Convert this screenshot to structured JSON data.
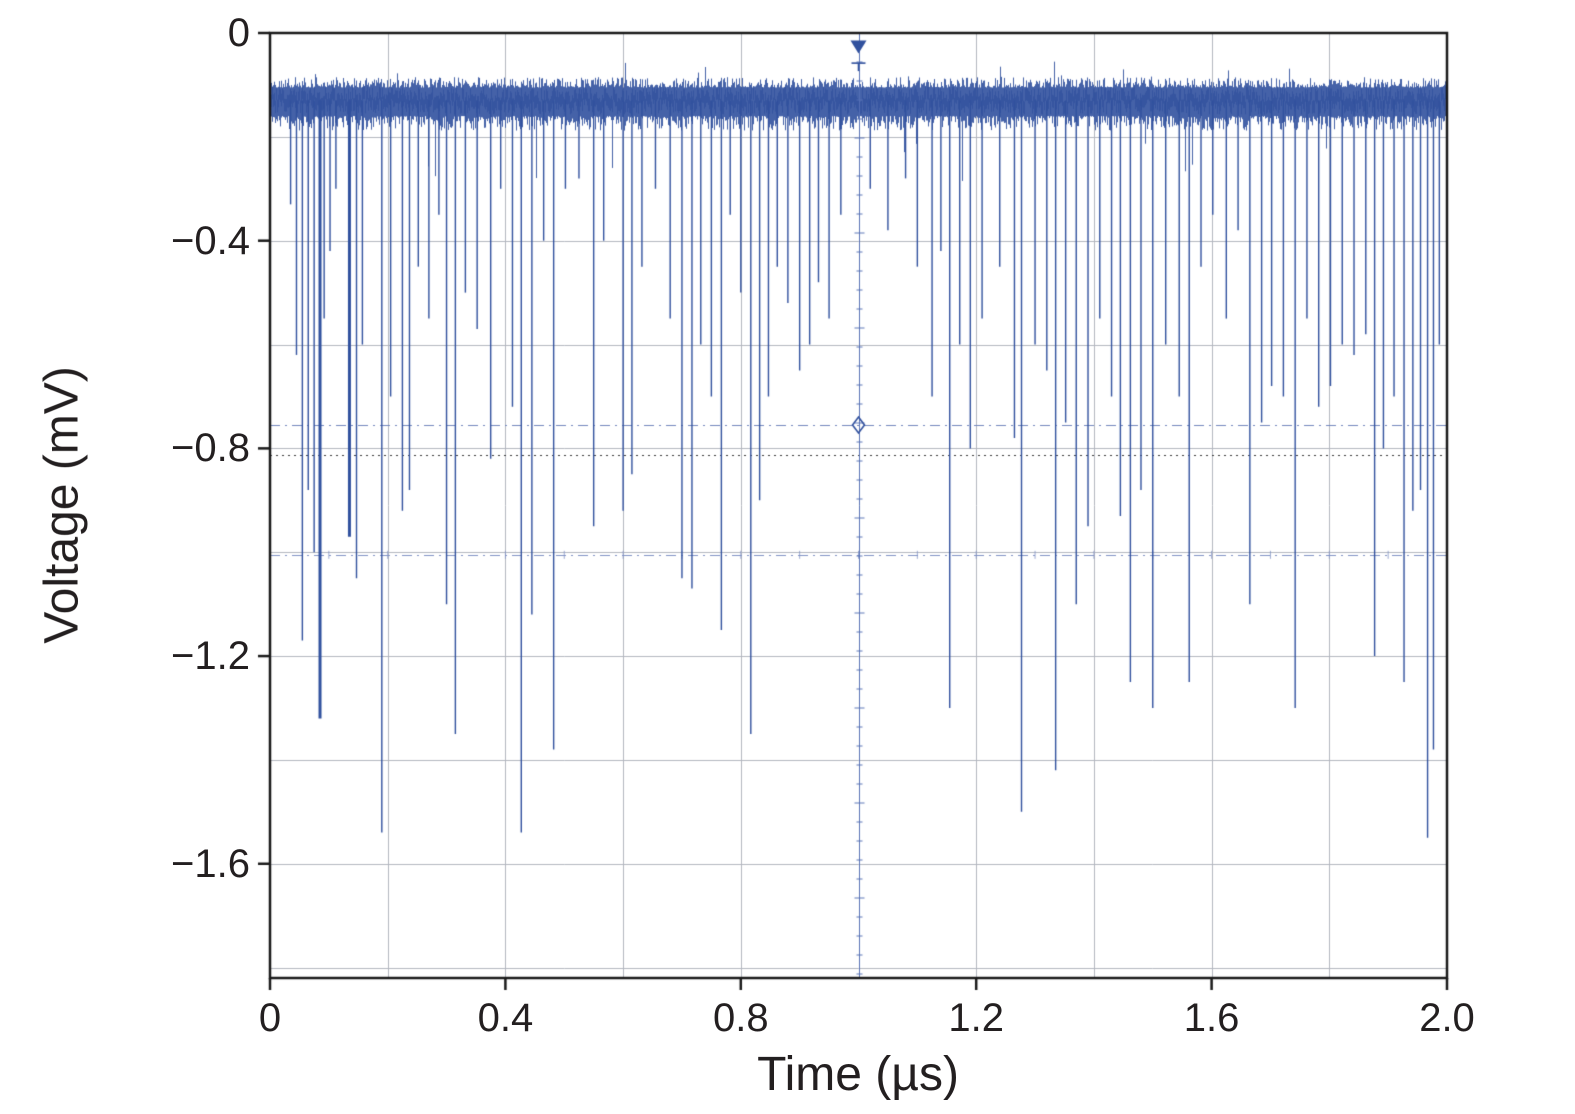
{
  "chart_data": {
    "type": "line",
    "title": "",
    "xlabel": "Time (µs)",
    "ylabel": "Voltage (mV)",
    "xlim": [
      0,
      2.0
    ],
    "ylim": [
      -1.82,
      0
    ],
    "grid": {
      "on": true,
      "x_step": 0.2,
      "y_step": 0.2,
      "color": "#b3b7c0"
    },
    "xticks": {
      "values": [
        0,
        0.4,
        0.8,
        1.2,
        1.6,
        2.0
      ],
      "labels": [
        "0",
        "0.4",
        "0.8",
        "1.2",
        "1.6",
        "2.0"
      ]
    },
    "yticks": {
      "values": [
        0,
        -0.4,
        -0.8,
        -1.2,
        -1.6
      ],
      "labels": [
        "0",
        "−0.4",
        "−0.8",
        "−1.2",
        "−1.6"
      ]
    },
    "colors": {
      "trace": "#31519e",
      "trace_light": "#5570b5",
      "axis": "#1a1a1a",
      "text": "#231f20"
    },
    "baseline": {
      "level": -0.13,
      "noise_top": -0.105,
      "noise_bottom": -0.16
    },
    "ref_lines": [
      {
        "v": -0.755,
        "style": "dashdot",
        "color": "#7388be",
        "note": "cursor level with diamond marker"
      },
      {
        "v": -0.813,
        "style": "dotted",
        "color": "#3a3a3a",
        "note": "dotted reference level"
      },
      {
        "v": -1.005,
        "style": "dashdot",
        "color": "#8294c6",
        "note": "lower dash-dot reference level"
      }
    ],
    "trigger": {
      "t": 1.0,
      "triangle_v": -0.028,
      "tee_v": -0.058,
      "diamond_v": -0.755
    },
    "spikes": [
      [
        0.035,
        -0.33
      ],
      [
        0.045,
        -0.62
      ],
      [
        0.055,
        -1.17
      ],
      [
        0.065,
        -0.88
      ],
      [
        0.075,
        -1.0
      ],
      [
        0.085,
        -1.32,
        3
      ],
      [
        0.092,
        -0.55
      ],
      [
        0.102,
        -0.42
      ],
      [
        0.112,
        -0.3
      ],
      [
        0.135,
        -0.97,
        3
      ],
      [
        0.147,
        -1.05
      ],
      [
        0.157,
        -0.6
      ],
      [
        0.19,
        -1.54
      ],
      [
        0.205,
        -0.7
      ],
      [
        0.225,
        -0.92
      ],
      [
        0.237,
        -0.88
      ],
      [
        0.252,
        -0.45
      ],
      [
        0.27,
        -0.55
      ],
      [
        0.287,
        -0.35
      ],
      [
        0.3,
        -1.1
      ],
      [
        0.315,
        -1.35
      ],
      [
        0.332,
        -0.5
      ],
      [
        0.352,
        -0.57
      ],
      [
        0.375,
        -0.82
      ],
      [
        0.392,
        -0.3
      ],
      [
        0.412,
        -0.72
      ],
      [
        0.427,
        -1.54
      ],
      [
        0.445,
        -1.12
      ],
      [
        0.465,
        -0.4
      ],
      [
        0.482,
        -1.38
      ],
      [
        0.502,
        -0.3
      ],
      [
        0.525,
        -0.28
      ],
      [
        0.55,
        -0.95
      ],
      [
        0.567,
        -0.4
      ],
      [
        0.6,
        -0.92
      ],
      [
        0.615,
        -0.85
      ],
      [
        0.632,
        -0.45
      ],
      [
        0.655,
        -0.3
      ],
      [
        0.68,
        -0.55
      ],
      [
        0.7,
        -1.05
      ],
      [
        0.717,
        -1.07
      ],
      [
        0.732,
        -0.6
      ],
      [
        0.75,
        -0.7
      ],
      [
        0.767,
        -1.15
      ],
      [
        0.782,
        -0.35
      ],
      [
        0.8,
        -0.5
      ],
      [
        0.817,
        -1.35
      ],
      [
        0.832,
        -0.9
      ],
      [
        0.847,
        -0.7
      ],
      [
        0.862,
        -0.45
      ],
      [
        0.88,
        -0.52
      ],
      [
        0.9,
        -0.65
      ],
      [
        0.917,
        -0.6
      ],
      [
        0.932,
        -0.48
      ],
      [
        0.95,
        -0.55
      ],
      [
        0.97,
        -0.35
      ],
      [
        1.02,
        -0.3
      ],
      [
        1.05,
        -0.38
      ],
      [
        1.08,
        -0.28
      ],
      [
        1.1,
        -0.45
      ],
      [
        1.125,
        -0.7
      ],
      [
        1.14,
        -0.42
      ],
      [
        1.155,
        -1.3
      ],
      [
        1.172,
        -0.6
      ],
      [
        1.19,
        -0.8
      ],
      [
        1.21,
        -0.55
      ],
      [
        1.24,
        -0.45
      ],
      [
        1.265,
        -0.78
      ],
      [
        1.277,
        -1.5
      ],
      [
        1.3,
        -0.6
      ],
      [
        1.32,
        -0.65
      ],
      [
        1.335,
        -1.42
      ],
      [
        1.352,
        -0.75
      ],
      [
        1.37,
        -1.1
      ],
      [
        1.39,
        -0.95
      ],
      [
        1.41,
        -0.55
      ],
      [
        1.43,
        -0.7
      ],
      [
        1.445,
        -0.93
      ],
      [
        1.462,
        -1.25
      ],
      [
        1.48,
        -0.88
      ],
      [
        1.5,
        -1.3
      ],
      [
        1.522,
        -0.6
      ],
      [
        1.545,
        -0.7
      ],
      [
        1.562,
        -1.25
      ],
      [
        1.582,
        -0.45
      ],
      [
        1.602,
        -0.35
      ],
      [
        1.625,
        -0.55
      ],
      [
        1.645,
        -0.38
      ],
      [
        1.665,
        -1.1
      ],
      [
        1.685,
        -0.75
      ],
      [
        1.702,
        -0.68
      ],
      [
        1.722,
        -0.7
      ],
      [
        1.742,
        -1.3
      ],
      [
        1.762,
        -0.55
      ],
      [
        1.782,
        -0.72
      ],
      [
        1.802,
        -0.68
      ],
      [
        1.822,
        -0.6
      ],
      [
        1.842,
        -0.62
      ],
      [
        1.862,
        -0.58
      ],
      [
        1.877,
        -1.2
      ],
      [
        1.892,
        -0.8
      ],
      [
        1.91,
        -0.7
      ],
      [
        1.927,
        -1.25
      ],
      [
        1.942,
        -0.92
      ],
      [
        1.955,
        -0.88
      ],
      [
        1.967,
        -1.55
      ],
      [
        1.977,
        -1.38
      ],
      [
        1.987,
        -0.6
      ]
    ]
  }
}
